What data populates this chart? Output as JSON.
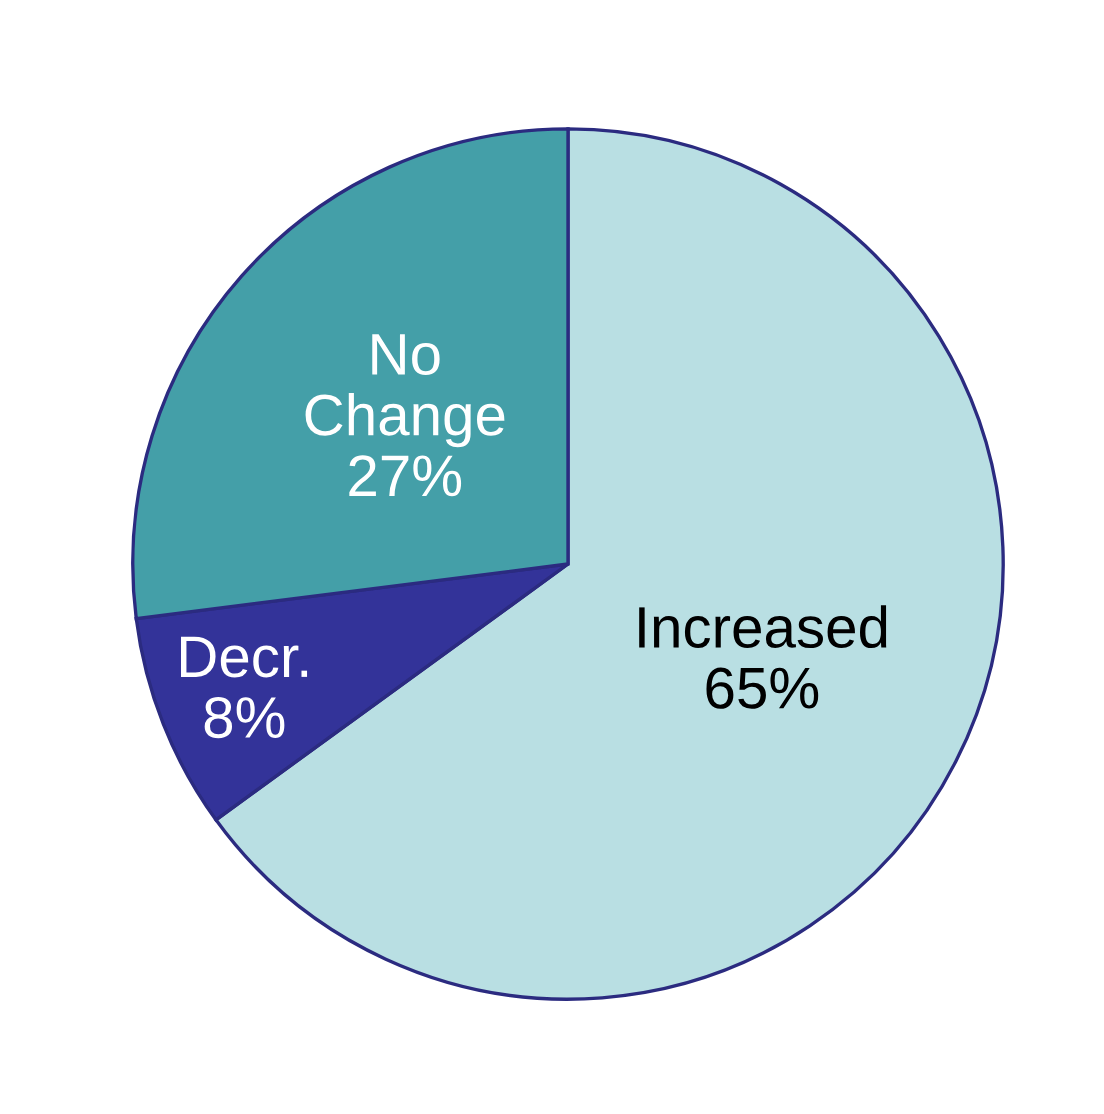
{
  "chart_data": {
    "type": "pie",
    "categories": [
      "Increased",
      "Decr.",
      "No Change"
    ],
    "values": [
      65,
      8,
      27
    ],
    "value_labels": [
      "65%",
      "8%",
      "27%"
    ],
    "colors": [
      "#b9dfe3",
      "#333399",
      "#449fa8"
    ]
  }
}
